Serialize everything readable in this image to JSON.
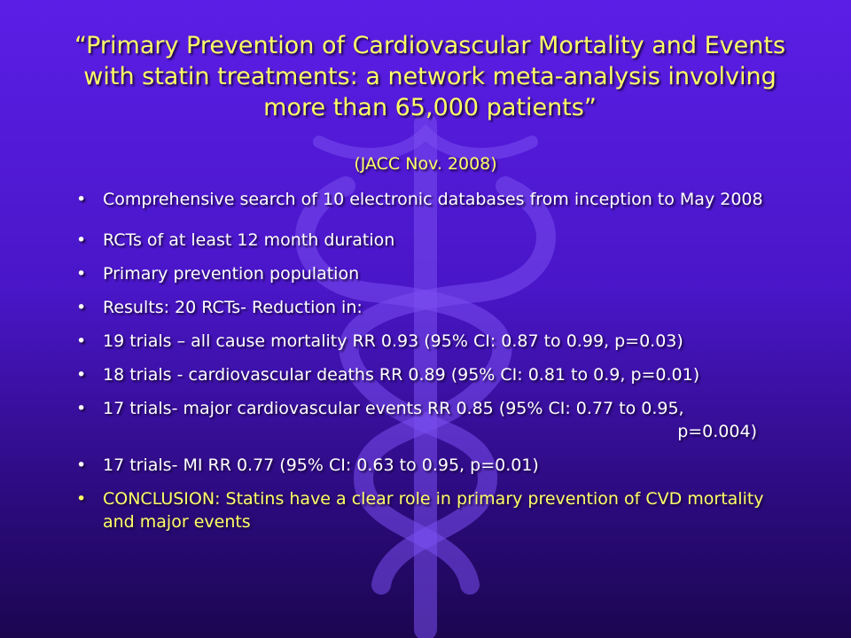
{
  "title": "“Primary Prevention of Cardiovascular Mortality and Events  with statin treatments: a network meta-analysis involving more than 65,000 patients”",
  "source": "(JACC Nov. 2008)",
  "bullet_glyph": "•",
  "bullets": [
    "Comprehensive search of 10 electronic databases from inception to May 2008",
    "RCTs of at least 12 month duration",
    "Primary prevention population",
    "Results: 20 RCTs- Reduction  in:",
    "19 trials – all cause mortality RR 0.93 (95% CI: 0.87 to 0.99, p=0.03)",
    "18 trials -  cardiovascular deaths RR 0.89 (95% CI: 0.81 to 0.9, p=0.01)",
    "17 trials- major cardiovascular events RR 0.85 (95% CI: 0.77 to 0.95,",
    "17 trials- MI   RR 0.77 (95% CI: 0.63 to 0.95, p=0.01)",
    "CONCLUSION: Statins have a clear role in primary prevention of CVD mortality and major events"
  ],
  "bullet_7_continuation": "p=0.004)",
  "colors": {
    "title": "#ffff66",
    "body_text": "#ffffff",
    "conclusion": "#ffff66",
    "background": "#4a16c8"
  }
}
